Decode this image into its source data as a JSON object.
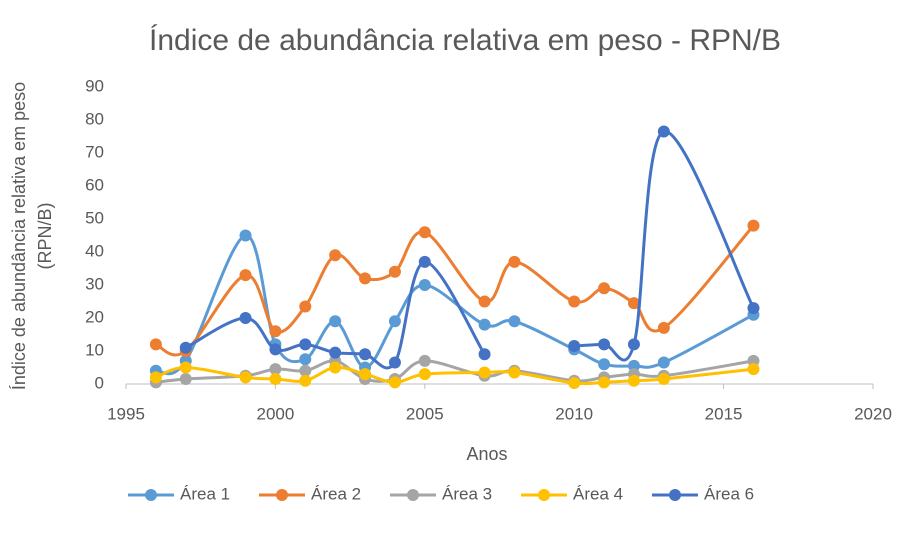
{
  "chart_data": {
    "type": "line",
    "title": "Índice de abundância relativa em peso - RPN/B",
    "x_label": "Anos",
    "y_label": [
      "Índice de abundância relativa em peso",
      "(RPN/B)"
    ],
    "x": [
      1996,
      1997,
      1999,
      2000,
      2001,
      2002,
      2003,
      2004,
      2005,
      2007,
      2008,
      2010,
      2011,
      2012,
      2013,
      2016
    ],
    "series": [
      {
        "name": "Área 1",
        "color": "#5B9BD5",
        "values": [
          4,
          7,
          45,
          12,
          7.5,
          19,
          5,
          19,
          30,
          18,
          19,
          10.5,
          6,
          5.5,
          6.5,
          21
        ]
      },
      {
        "name": "Área 2",
        "color": "#ED7D31",
        "values": [
          12,
          10,
          33,
          16,
          23.5,
          39,
          32,
          34,
          46,
          25,
          37,
          25,
          29,
          24.5,
          17,
          48
        ]
      },
      {
        "name": "Área 3",
        "color": "#A5A5A5",
        "values": [
          0.5,
          1.5,
          2.5,
          4.5,
          4,
          7,
          1.5,
          1.5,
          7,
          2.5,
          4,
          1,
          2,
          3,
          2.5,
          7
        ]
      },
      {
        "name": "Área 4",
        "color": "#FFC000",
        "values": [
          2,
          5,
          2,
          1.5,
          1,
          5,
          3,
          0.5,
          3,
          3.5,
          3.5,
          0.3,
          0.5,
          1,
          1.5,
          4.5
        ]
      },
      {
        "name": "Área 6",
        "color": "#4472C4",
        "values": [
          null,
          11,
          20,
          10.5,
          12,
          9.5,
          9,
          6.5,
          37,
          9,
          null,
          11.5,
          12,
          12,
          76.5,
          23
        ]
      }
    ],
    "xlim": [
      1995,
      2020
    ],
    "xticks": [
      1995,
      2000,
      2005,
      2010,
      2015,
      2020
    ],
    "ylim": [
      0,
      90
    ],
    "yticks": [
      0,
      10,
      20,
      30,
      40,
      50,
      60,
      70,
      80,
      90
    ],
    "grid": false,
    "smooth": true,
    "legend": "bottom"
  }
}
